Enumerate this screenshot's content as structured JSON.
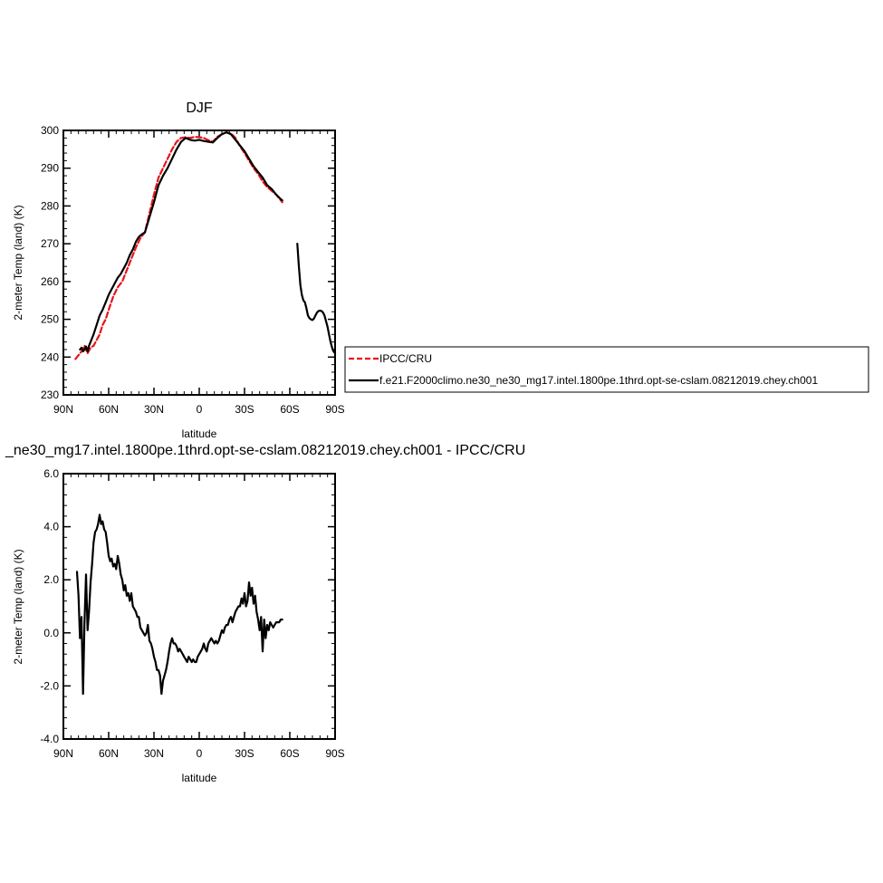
{
  "chart_data": [
    {
      "type": "line",
      "title": "DJF",
      "xlabel": "latitude",
      "ylabel": "2-meter Temp (land) (K)",
      "xlim": [
        -90,
        90
      ],
      "ylim": [
        230,
        300
      ],
      "x_ticks": [
        -90,
        -60,
        -30,
        0,
        30,
        60,
        90
      ],
      "x_tick_labels": [
        "90N",
        "60N",
        "30N",
        "0",
        "30S",
        "60S",
        "90S"
      ],
      "y_ticks": [
        230,
        240,
        250,
        260,
        270,
        280,
        290,
        300
      ],
      "y_tick_labels": [
        "230",
        "240",
        "250",
        "260",
        "270",
        "280",
        "290",
        "300"
      ],
      "legend_position": "right",
      "series": [
        {
          "name": "IPCC/CRU",
          "color": "#e8141a",
          "dash": "dashed",
          "x": [
            -82,
            -80,
            -78,
            -76,
            -74,
            -72,
            -70,
            -68,
            -66,
            -64,
            -62,
            -60,
            -57,
            -54,
            -51,
            -48,
            -45,
            -42,
            -39,
            -36,
            -33,
            -30,
            -27,
            -24,
            -21,
            -18,
            -15,
            -12,
            -9,
            -6,
            -3,
            0,
            3,
            6,
            9,
            12,
            15,
            18,
            21,
            24,
            27,
            30,
            33,
            36,
            39,
            42,
            45,
            48,
            51,
            54,
            55
          ],
          "y": [
            239.5,
            240.5,
            241.5,
            243.0,
            241.0,
            242.5,
            243.0,
            244.5,
            246.0,
            248.5,
            250.0,
            252.5,
            256.0,
            258.5,
            260.0,
            263.0,
            266.0,
            269.0,
            271.5,
            273.0,
            278.0,
            283.0,
            287.5,
            290.0,
            292.5,
            295.0,
            297.0,
            298.0,
            298.2,
            298.0,
            298.3,
            298.2,
            298.0,
            297.4,
            297.0,
            298.3,
            299.0,
            299.5,
            299.2,
            298.0,
            295.8,
            294.0,
            292.0,
            290.0,
            288.5,
            286.5,
            285.0,
            284.0,
            283.0,
            281.5,
            281.0
          ]
        },
        {
          "name": "f.e21.F2000climo.ne30_ne30_mg17.intel.1800pe.1thrd.opt-se-cslam.08212019.chey.ch001",
          "color": "#000000",
          "dash": "solid",
          "x": [
            -79,
            -78,
            -77,
            -76,
            -75,
            -74,
            -73,
            -72,
            -70,
            -68,
            -66,
            -64,
            -62,
            -60,
            -58,
            -56,
            -54,
            -52,
            -50,
            -48,
            -46,
            -44,
            -42,
            -40,
            -38,
            -36,
            -33,
            -30,
            -27,
            -24,
            -21,
            -18,
            -15,
            -12,
            -9,
            -6,
            -3,
            0,
            3,
            6,
            9,
            12,
            15,
            18,
            21,
            24,
            27,
            30,
            33,
            36,
            39,
            42,
            45,
            48,
            51,
            54,
            55
          ],
          "y": [
            242.0,
            242.5,
            241.5,
            242.0,
            242.8,
            241.5,
            243.0,
            244.0,
            246.0,
            248.5,
            251.0,
            252.5,
            254.5,
            256.5,
            258.0,
            259.5,
            261.0,
            262.0,
            263.5,
            265.0,
            267.0,
            268.5,
            270.5,
            271.8,
            272.5,
            273.0,
            277.0,
            281.0,
            285.5,
            288.0,
            290.0,
            292.5,
            295.0,
            297.0,
            298.0,
            297.5,
            297.3,
            297.5,
            297.2,
            297.0,
            296.8,
            298.0,
            299.0,
            299.5,
            299.0,
            297.5,
            296.0,
            294.5,
            292.5,
            290.5,
            289.0,
            287.5,
            285.5,
            284.5,
            283.0,
            281.8,
            281.5
          ]
        },
        {
          "name": "f.e21.F2000climo.ne30_ne30_mg17.intel.1800pe.1thrd.opt-se-cslam.08212019.chey.ch001",
          "color": "#000000",
          "dash": "solid",
          "segment": "antarctic",
          "x": [
            65,
            66,
            67,
            68,
            69,
            70,
            71,
            72,
            73,
            74,
            75,
            76,
            77,
            78,
            79,
            80,
            81,
            82,
            83,
            84,
            85,
            86,
            87,
            88,
            89,
            90
          ],
          "y": [
            270.0,
            264.0,
            259.0,
            256.5,
            255.0,
            254.5,
            253.0,
            251.0,
            250.3,
            250.0,
            249.8,
            250.2,
            251.0,
            251.8,
            252.2,
            252.3,
            252.2,
            251.8,
            251.0,
            249.5,
            248.0,
            246.0,
            244.0,
            242.5,
            241.5,
            241.0
          ]
        }
      ]
    },
    {
      "type": "line",
      "title": "_ne30_mg17.intel.1800pe.1thrd.opt-se-cslam.08212019.chey.ch001 - IPCC/CRU",
      "xlabel": "latitude",
      "ylabel": "2-meter Temp (land) (K)",
      "xlim": [
        -90,
        90
      ],
      "ylim": [
        -4.0,
        6.0
      ],
      "x_ticks": [
        -90,
        -60,
        -30,
        0,
        30,
        60,
        90
      ],
      "x_tick_labels": [
        "90N",
        "60N",
        "30N",
        "0",
        "30S",
        "60S",
        "90S"
      ],
      "y_ticks": [
        -4.0,
        -2.0,
        0.0,
        2.0,
        4.0,
        6.0
      ],
      "y_tick_labels": [
        "-4.0",
        "-2.0",
        "0.0",
        "2.0",
        "4.0",
        "6.0"
      ],
      "series": [
        {
          "color": "#000000",
          "dash": "solid",
          "x": [
            -81,
            -80,
            -79,
            -78,
            -77,
            -76,
            -75,
            -74,
            -73,
            -72,
            -71,
            -70,
            -69,
            -68,
            -67,
            -66,
            -65,
            -64,
            -63,
            -62,
            -61,
            -60,
            -59,
            -58,
            -57,
            -56,
            -55,
            -54,
            -53,
            -52,
            -51,
            -50,
            -49,
            -48,
            -47,
            -46,
            -45,
            -44,
            -43,
            -42,
            -41,
            -40,
            -39,
            -38,
            -37,
            -36,
            -35,
            -34,
            -33,
            -32,
            -31,
            -30,
            -29,
            -28,
            -27,
            -26,
            -25,
            -24,
            -23,
            -22,
            -21,
            -20,
            -19,
            -18,
            -17,
            -16,
            -15,
            -14,
            -13,
            -12,
            -11,
            -10,
            -9,
            -8,
            -7,
            -6,
            -5,
            -4,
            -3,
            -2,
            -1,
            0,
            1,
            2,
            3,
            4,
            5,
            6,
            7,
            8,
            9,
            10,
            11,
            12,
            13,
            14,
            15,
            16,
            17,
            18,
            19,
            20,
            21,
            22,
            23,
            24,
            25,
            26,
            27,
            28,
            29,
            30,
            31,
            32,
            33,
            34,
            35,
            36,
            37,
            38,
            39,
            40,
            41,
            42,
            43,
            44,
            45,
            46,
            47,
            48,
            49,
            50,
            51,
            52,
            53,
            54,
            55
          ],
          "y": [
            2.3,
            1.4,
            -0.2,
            0.6,
            -2.3,
            0.4,
            2.2,
            0.1,
            0.8,
            1.9,
            2.6,
            3.4,
            3.8,
            3.9,
            4.1,
            4.45,
            4.1,
            4.2,
            3.9,
            3.8,
            3.4,
            2.9,
            2.7,
            2.8,
            2.5,
            2.6,
            2.4,
            2.9,
            2.6,
            2.2,
            2.0,
            1.6,
            1.8,
            1.4,
            1.5,
            1.2,
            1.5,
            1.0,
            0.9,
            0.8,
            0.6,
            0.6,
            0.2,
            0.1,
            0.0,
            -0.1,
            0.0,
            0.3,
            -0.3,
            -0.4,
            -0.6,
            -0.9,
            -1.1,
            -1.4,
            -1.4,
            -1.6,
            -2.3,
            -1.8,
            -1.6,
            -1.4,
            -1.1,
            -0.7,
            -0.4,
            -0.2,
            -0.4,
            -0.4,
            -0.5,
            -0.7,
            -0.6,
            -0.7,
            -0.8,
            -0.9,
            -1.0,
            -1.1,
            -0.9,
            -1.0,
            -1.1,
            -1.0,
            -1.1,
            -1.1,
            -0.9,
            -0.8,
            -0.7,
            -0.6,
            -0.4,
            -0.6,
            -0.7,
            -0.4,
            -0.3,
            -0.2,
            -0.3,
            -0.4,
            -0.3,
            -0.4,
            -0.3,
            -0.1,
            0.1,
            0.0,
            0.2,
            0.3,
            0.3,
            0.5,
            0.6,
            0.4,
            0.6,
            0.8,
            0.9,
            1.0,
            1.0,
            1.3,
            1.1,
            1.5,
            1.0,
            1.2,
            1.9,
            1.4,
            1.7,
            1.1,
            1.4,
            0.8,
            0.5,
            0.1,
            0.6,
            -0.7,
            0.5,
            -0.2,
            0.3,
            0.1,
            0.4,
            0.3,
            0.2,
            0.3,
            0.4,
            0.4,
            0.4,
            0.5,
            0.5
          ]
        }
      ]
    }
  ]
}
